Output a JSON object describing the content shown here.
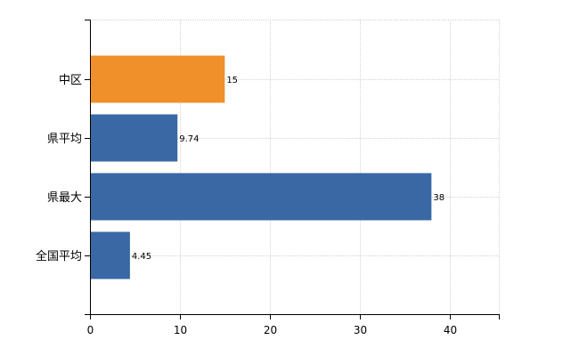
{
  "chart_data": {
    "type": "bar",
    "orientation": "horizontal",
    "categories": [
      "中区",
      "県平均",
      "県最大",
      "全国平均"
    ],
    "values": [
      15,
      9.74,
      38,
      4.45
    ],
    "data_labels": [
      "15",
      "9.74",
      "38",
      "4.45"
    ],
    "colors": [
      "#f0902a",
      "#3a68a4",
      "#3a68a4",
      "#3a68a4"
    ],
    "xlim": [
      0,
      45.5
    ],
    "xticks": [
      0,
      10,
      20,
      30,
      40
    ],
    "grid": "dashed, both axes",
    "legend": "none",
    "title": "",
    "xlabel": "",
    "ylabel": ""
  }
}
